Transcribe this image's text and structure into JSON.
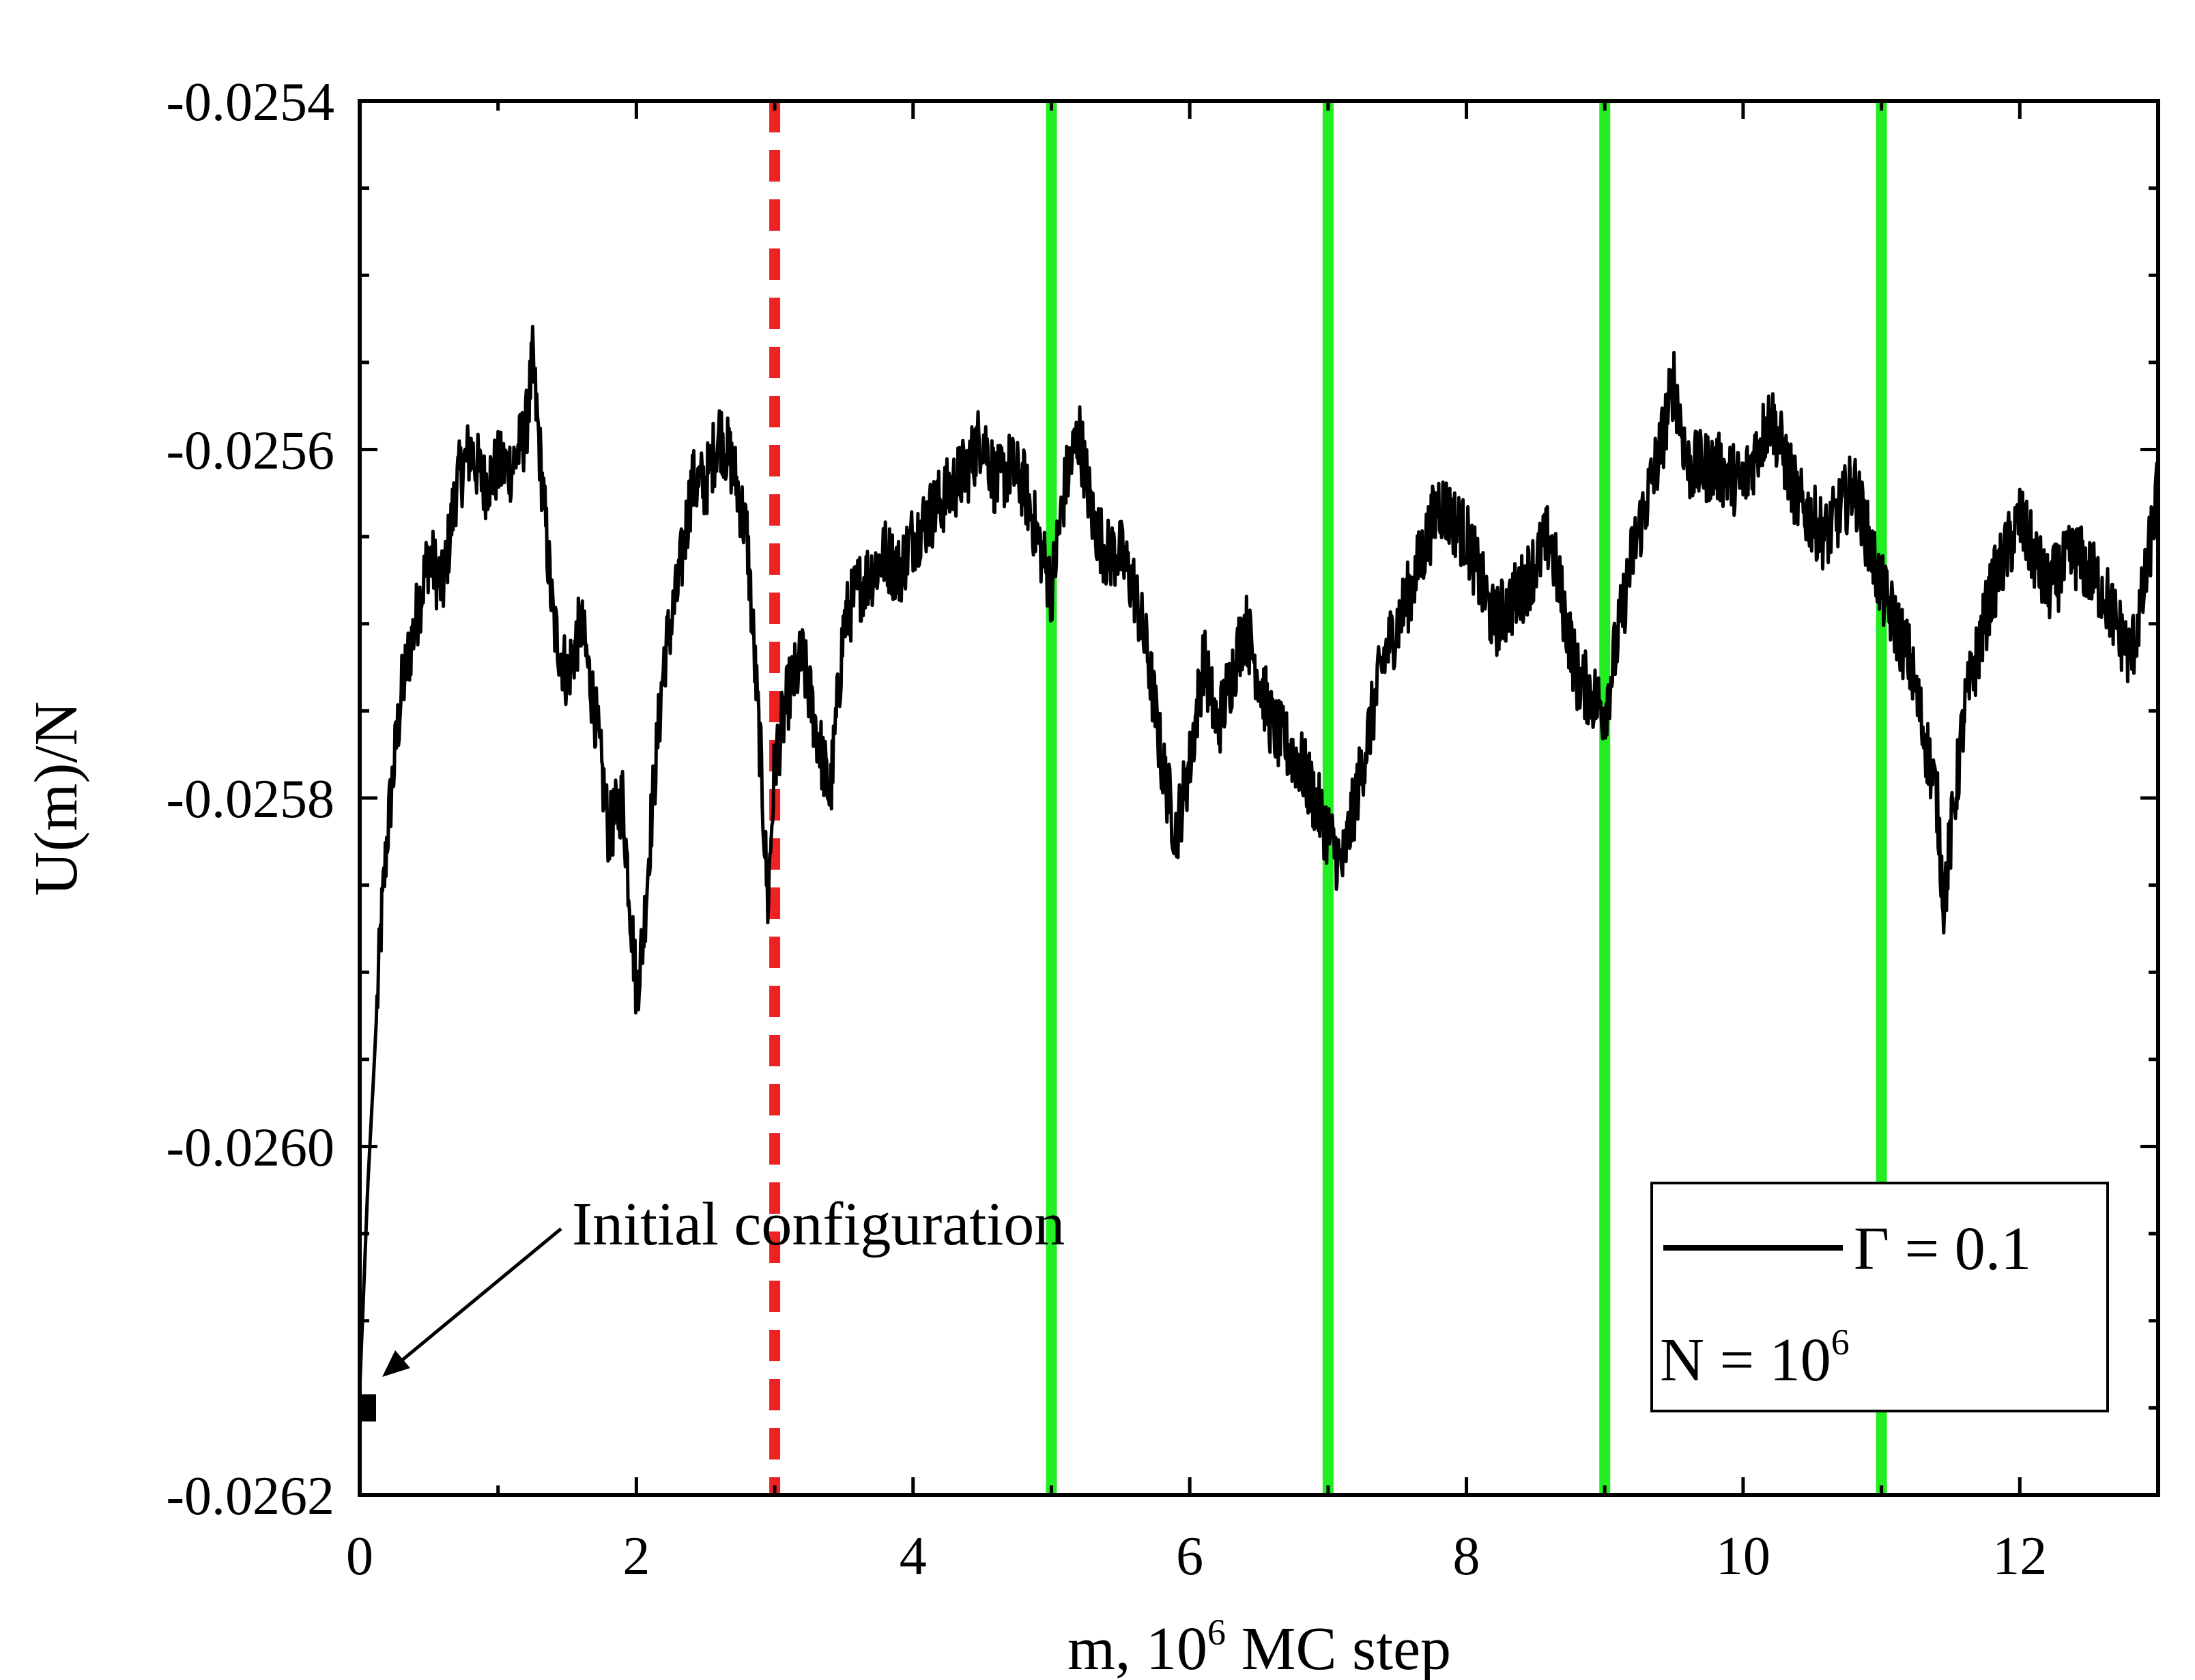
{
  "chart_data": {
    "type": "line",
    "title": "",
    "xlabel": "m, 10",
    "xlabel_exponent": "6",
    "xlabel_suffix": " MC step",
    "ylabel": "U(m)/N",
    "xlim": [
      0,
      13
    ],
    "ylim": [
      -0.0262,
      -0.0254
    ],
    "xticks": [
      0,
      2,
      4,
      6,
      8,
      10,
      12
    ],
    "xtick_labels": [
      "0",
      "2",
      "4",
      "6",
      "8",
      "10",
      "12"
    ],
    "xminor_step": 1,
    "yticks": [
      -0.0262,
      -0.026,
      -0.0258,
      -0.0256,
      -0.0254
    ],
    "ytick_labels": [
      "-0.0262",
      "-0.0260",
      "-0.0258",
      "-0.0256",
      "-0.0254"
    ],
    "yminor_step": 5e-05,
    "grid": false,
    "series": [
      {
        "name": "Γ = 0.1",
        "color": "#000000",
        "anchors_x": [
          0.0,
          0.03,
          0.06,
          0.1,
          0.15,
          0.2,
          0.3,
          0.4,
          0.5,
          0.6,
          0.7,
          0.8,
          0.9,
          1.0,
          1.1,
          1.2,
          1.25,
          1.3,
          1.4,
          1.5,
          1.6,
          1.7,
          1.8,
          1.9,
          2.0,
          2.05,
          2.1,
          2.2,
          2.3,
          2.4,
          2.5,
          2.6,
          2.7,
          2.8,
          2.9,
          2.95,
          3.0,
          3.1,
          3.2,
          3.3,
          3.4,
          3.5,
          3.6,
          3.7,
          3.8,
          3.9,
          4.0,
          4.2,
          4.4,
          4.5,
          4.6,
          4.7,
          4.8,
          4.9,
          5.0,
          5.1,
          5.2,
          5.3,
          5.4,
          5.5,
          5.6,
          5.7,
          5.8,
          5.9,
          6.0,
          6.1,
          6.2,
          6.4,
          6.6,
          6.8,
          7.0,
          7.1,
          7.2,
          7.4,
          7.6,
          7.8,
          8.0,
          8.2,
          8.4,
          8.6,
          8.8,
          9.0,
          9.2,
          9.4,
          9.5,
          9.6,
          9.8,
          10.0,
          10.2,
          10.4,
          10.6,
          10.8,
          11.0,
          11.2,
          11.4,
          11.45,
          11.6,
          11.8,
          12.0,
          12.2,
          12.4,
          12.6,
          12.8,
          12.9,
          13.0
        ],
        "anchors_y": [
          -0.02614,
          -0.02608,
          -0.02602,
          -0.02596,
          -0.02588,
          -0.02582,
          -0.02574,
          -0.0257,
          -0.02566,
          -0.02568,
          -0.02562,
          -0.0256,
          -0.02562,
          -0.02561,
          -0.02561,
          -0.02559,
          -0.02555,
          -0.0256,
          -0.0257,
          -0.02573,
          -0.0257,
          -0.02575,
          -0.02582,
          -0.0258,
          -0.02591,
          -0.02588,
          -0.02582,
          -0.02572,
          -0.02568,
          -0.02562,
          -0.02562,
          -0.02559,
          -0.02561,
          -0.02565,
          -0.02578,
          -0.02586,
          -0.02578,
          -0.02574,
          -0.02572,
          -0.02576,
          -0.0258,
          -0.0257,
          -0.02568,
          -0.02567,
          -0.02566,
          -0.02567,
          -0.02565,
          -0.02563,
          -0.02561,
          -0.02559,
          -0.02562,
          -0.02561,
          -0.02562,
          -0.02565,
          -0.02568,
          -0.02562,
          -0.02559,
          -0.02564,
          -0.02566,
          -0.02566,
          -0.02568,
          -0.02572,
          -0.02578,
          -0.02582,
          -0.02578,
          -0.02572,
          -0.02576,
          -0.0257,
          -0.02576,
          -0.02578,
          -0.02582,
          -0.02584,
          -0.0258,
          -0.02572,
          -0.02568,
          -0.02563,
          -0.02565,
          -0.0257,
          -0.02568,
          -0.02565,
          -0.02573,
          -0.02575,
          -0.02566,
          -0.0256,
          -0.02556,
          -0.02561,
          -0.02561,
          -0.02562,
          -0.02558,
          -0.02563,
          -0.02565,
          -0.02562,
          -0.02568,
          -0.02572,
          -0.0258,
          -0.02586,
          -0.02575,
          -0.02568,
          -0.02564,
          -0.02568,
          -0.02566,
          -0.02568,
          -0.02572,
          -0.02568,
          -0.02562
        ]
      }
    ],
    "vertical_markers": [
      {
        "x": 3,
        "style": "dashed",
        "color": "#ee2222"
      },
      {
        "x": 5,
        "style": "solid",
        "color": "#22ee22"
      },
      {
        "x": 7,
        "style": "solid",
        "color": "#22ee22"
      },
      {
        "x": 9,
        "style": "solid",
        "color": "#22ee22"
      },
      {
        "x": 11,
        "style": "solid",
        "color": "#22ee22"
      }
    ],
    "annotations": [
      {
        "text": "Initial configuration",
        "points_to": [
          0.05,
          -0.02615
        ]
      }
    ],
    "legend": {
      "placement": "bottom-right",
      "entry_label": "Γ = 0.1",
      "note_prefix": "N = 10",
      "note_exponent": "6"
    }
  }
}
